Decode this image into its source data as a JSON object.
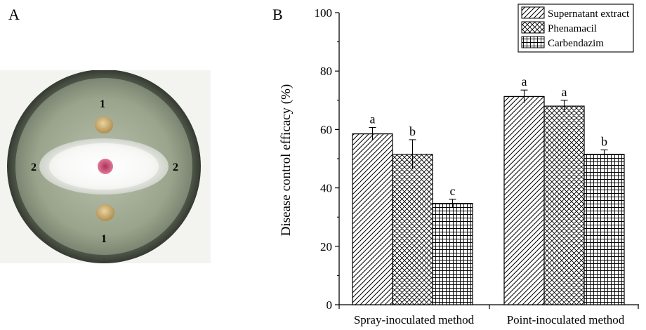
{
  "panels": {
    "a": "A",
    "b": "B"
  },
  "dish": {
    "disc_top": "1",
    "disc_bottom": "1",
    "colony_left": "2",
    "colony_right": "2"
  },
  "chart_data": {
    "type": "bar",
    "categories": [
      "Spray-inoculated method",
      "Point-inoculated method"
    ],
    "series": [
      {
        "name": "Supernatant extract",
        "pattern": "diagonal",
        "values": [
          58.5,
          71.3
        ],
        "errors": [
          2.2,
          2.2
        ],
        "letters": [
          "a",
          "a"
        ]
      },
      {
        "name": "Phenamacil",
        "pattern": "crosshatch",
        "values": [
          51.5,
          68.0
        ],
        "errors": [
          5.0,
          2.0
        ],
        "letters": [
          "b",
          "a"
        ]
      },
      {
        "name": "Carbendazim",
        "pattern": "grid",
        "values": [
          34.7,
          51.5
        ],
        "errors": [
          1.4,
          1.5
        ],
        "letters": [
          "c",
          "b"
        ]
      }
    ],
    "ylabel": "Disease control efficacy (%)",
    "xlabel": "",
    "ylim": [
      0,
      100
    ],
    "yticks": [
      0,
      20,
      40,
      60,
      80,
      100
    ],
    "legend_position": "top-right",
    "grid": false
  }
}
